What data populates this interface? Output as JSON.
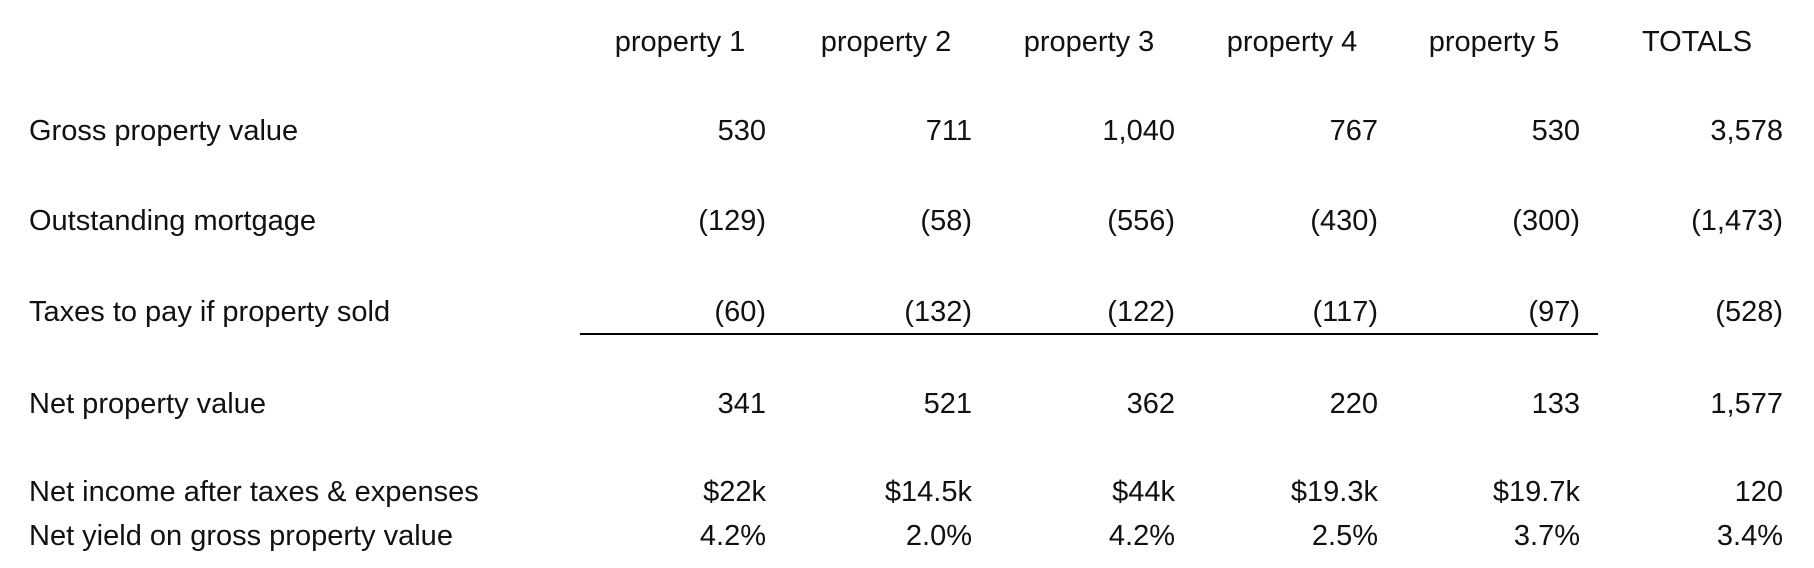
{
  "table": {
    "columns": [
      "property 1",
      "property 2",
      "property 3",
      "property 4",
      "property 5",
      "TOTALS"
    ],
    "rows": [
      {
        "label": "Gross property value",
        "cells": [
          "530",
          "711",
          "1,040",
          "767",
          "530",
          "3,578"
        ]
      },
      {
        "label": "Outstanding mortgage",
        "cells": [
          "(129)",
          "(58)",
          "(556)",
          "(430)",
          "(300)",
          "(1,473)"
        ]
      },
      {
        "label": "Taxes to pay if property sold",
        "cells": [
          "(60)",
          "(132)",
          "(122)",
          "(117)",
          "(97)",
          "(528)"
        ]
      },
      {
        "label": "Net property value",
        "cells": [
          "341",
          "521",
          "362",
          "220",
          "133",
          "1,577"
        ]
      },
      {
        "label": "Net income after taxes & expenses",
        "cells": [
          "$22k",
          "$14.5k",
          "$44k",
          "$19.3k",
          "$19.7k",
          "120"
        ]
      },
      {
        "label": "Net yield on gross property value",
        "cells": [
          "4.2%",
          "2.0%",
          "4.2%",
          "2.5%",
          "3.7%",
          "3.4%"
        ]
      }
    ]
  }
}
